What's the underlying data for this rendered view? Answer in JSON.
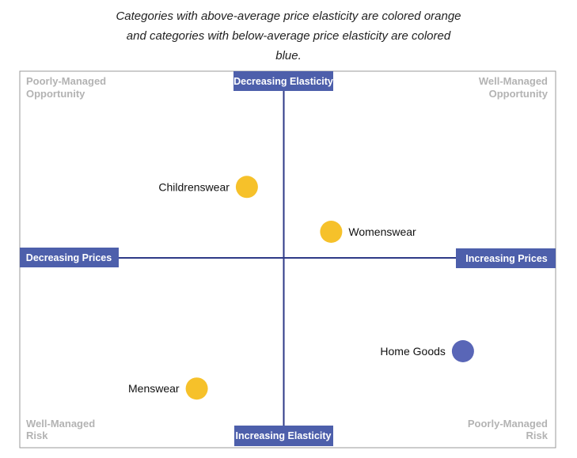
{
  "caption": {
    "line1": "Categories with above-average price elasticity are colored orange",
    "line2": "and categories with below-average price elasticity are colored",
    "line3": "blue."
  },
  "chart_data": {
    "type": "scatter",
    "title": "",
    "axes": {
      "top": "Decreasing Elasticity",
      "bottom": "Increasing Elasticity",
      "left": "Decreasing Prices",
      "right": "Increasing Prices"
    },
    "quadrants": {
      "top_left": [
        "Poorly-Managed",
        "Opportunity"
      ],
      "top_right": [
        "Well-Managed",
        "Opportunity"
      ],
      "bottom_left": [
        "Well-Managed",
        "Risk"
      ],
      "bottom_right": [
        "Poorly-Managed",
        "Risk"
      ]
    },
    "xlim": [
      -1,
      1
    ],
    "ylim": [
      -1,
      1
    ],
    "grid": false,
    "colors": {
      "axis": "#2e3a87",
      "axis_label_bg": "#4d5fab",
      "above_average": "#f6c12a",
      "below_average": "#5966b7",
      "frame": "#999999",
      "corner_text": "#b3b3b3"
    },
    "points": [
      {
        "label": "Childrenswear",
        "x": -0.14,
        "y": 0.38,
        "elasticity": "above-average",
        "label_side": "left"
      },
      {
        "label": "Womenswear",
        "x": 0.18,
        "y": 0.14,
        "elasticity": "above-average",
        "label_side": "right"
      },
      {
        "label": "Home Goods",
        "x": 0.68,
        "y": -0.5,
        "elasticity": "below-average",
        "label_side": "left"
      },
      {
        "label": "Menswear",
        "x": -0.33,
        "y": -0.7,
        "elasticity": "above-average",
        "label_side": "left"
      }
    ]
  }
}
